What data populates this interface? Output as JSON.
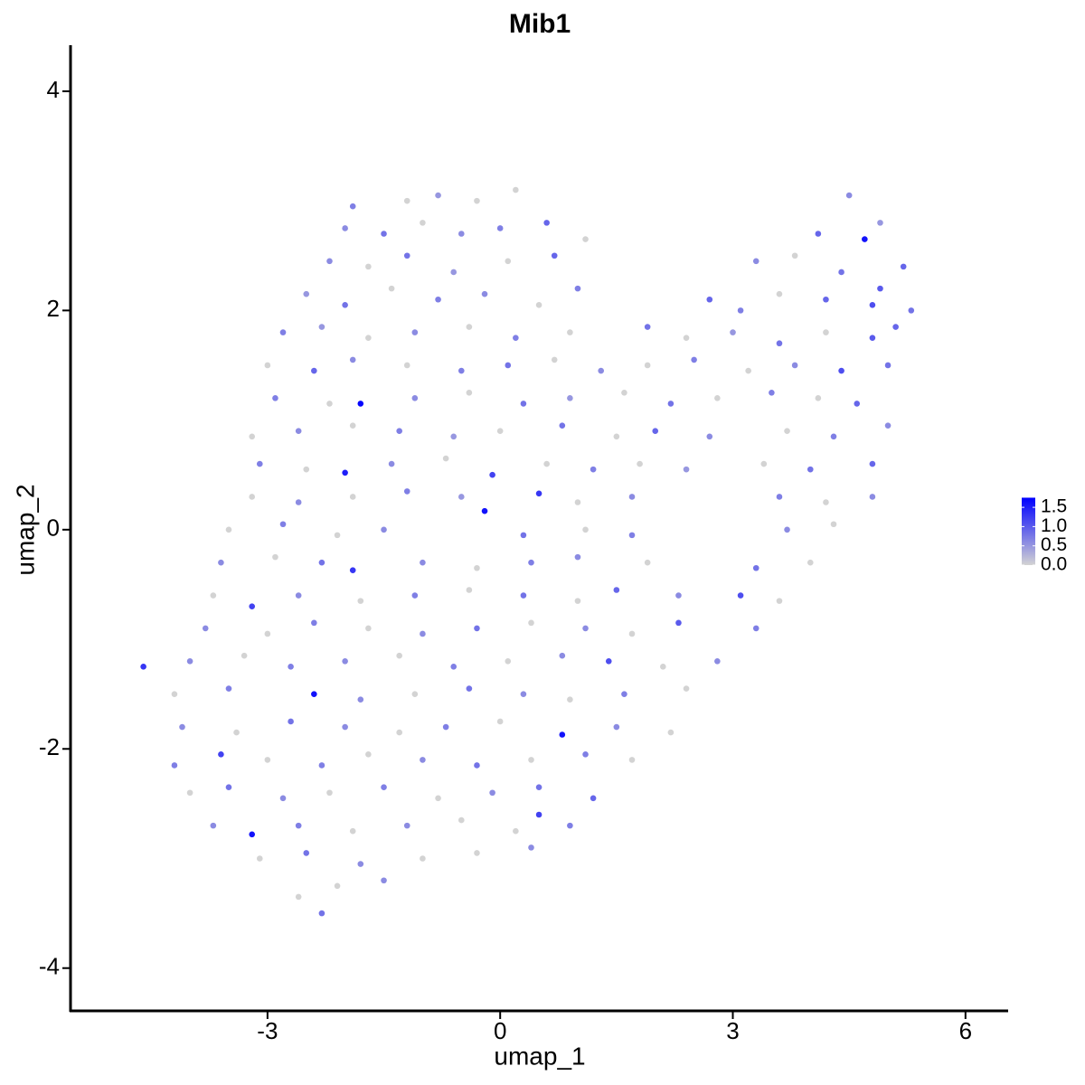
{
  "chart_data": {
    "type": "scatter",
    "title": "Mib1",
    "xlabel": "umap_1",
    "ylabel": "umap_2",
    "xlim": [
      -5.54,
      6.55
    ],
    "ylim": [
      -4.39,
      4.42
    ],
    "xticks": [
      -3,
      0,
      3,
      6
    ],
    "yticks": [
      -4,
      -2,
      0,
      2,
      4
    ],
    "colorscale": {
      "low": "#d3d3d3",
      "high": "#0000ff"
    },
    "colorlim": [
      0,
      1.75
    ],
    "colorticks": [
      {
        "value": 0,
        "label": "0.0"
      },
      {
        "value": 0.5,
        "label": "0.5"
      },
      {
        "value": 1,
        "label": "1.0"
      },
      {
        "value": 1.5,
        "label": "1.5"
      }
    ],
    "x": [
      -1.2,
      -0.8,
      -0.3,
      0.2,
      4.5,
      -1.9,
      -2.0,
      -1.5,
      -1.0,
      -0.5,
      0,
      0.6,
      1.1,
      4.1,
      4.7,
      4.9,
      -2.2,
      -1.7,
      -1.2,
      -0.6,
      0.1,
      0.7,
      3.3,
      3.8,
      4.4,
      5.2,
      4.9,
      -2.5,
      -2.0,
      -1.4,
      -0.8,
      -0.2,
      0.5,
      1.0,
      2.7,
      3.1,
      3.6,
      4.2,
      4.8,
      5.3,
      -2.8,
      -2.3,
      -1.7,
      -1.1,
      -0.4,
      0.2,
      0.9,
      1.9,
      2.4,
      3.0,
      3.6,
      4.2,
      4.8,
      5.1,
      -3.0,
      -2.4,
      -1.9,
      -1.2,
      -0.5,
      0.1,
      0.7,
      1.3,
      1.9,
      2.5,
      3.2,
      3.8,
      4.4,
      5.0,
      -2.9,
      -2.2,
      -1.8,
      -1.1,
      -0.4,
      0.3,
      0.9,
      1.6,
      2.2,
      2.8,
      3.5,
      4.1,
      4.6,
      -3.2,
      -2.6,
      -1.9,
      -1.3,
      -0.6,
      0.0,
      0.8,
      1.5,
      2.0,
      2.7,
      3.7,
      4.3,
      5.0,
      -3.1,
      -2.5,
      -2.0,
      -1.4,
      -0.7,
      -0.1,
      0.6,
      1.2,
      1.8,
      2.4,
      3.4,
      4.0,
      4.8,
      -3.2,
      -2.6,
      -1.9,
      -1.2,
      -0.5,
      0.5,
      1.0,
      1.7,
      3.6,
      4.2,
      4.8,
      -3.5,
      -2.8,
      -2.1,
      -1.5,
      -0.2,
      0.3,
      1.1,
      1.7,
      3.7,
      4.3,
      -3.6,
      -2.9,
      -2.3,
      -1.9,
      -1.0,
      -0.3,
      0.4,
      1.0,
      1.9,
      3.3,
      4.0,
      -3.7,
      -3.2,
      -2.6,
      -1.8,
      -1.1,
      -0.4,
      0.3,
      1.0,
      1.5,
      2.3,
      3.1,
      3.6,
      -3.8,
      -3.0,
      -2.4,
      -1.7,
      -1.0,
      -0.3,
      0.4,
      1.1,
      1.7,
      2.3,
      3.3,
      -4.6,
      -4.0,
      -3.3,
      -2.7,
      -2.0,
      -1.3,
      -0.6,
      0.1,
      0.8,
      1.4,
      2.1,
      2.8,
      -4.2,
      -3.5,
      -2.4,
      -1.8,
      -1.1,
      -0.4,
      0.3,
      0.9,
      1.6,
      2.4,
      -4.1,
      -3.4,
      -2.7,
      -2.0,
      -1.3,
      -0.7,
      0.0,
      0.8,
      1.5,
      2.2,
      -4.2,
      -3.6,
      -3.0,
      -2.3,
      -1.7,
      -1.0,
      -0.3,
      0.4,
      1.1,
      1.7,
      -4.0,
      -3.5,
      -2.8,
      -2.2,
      -1.5,
      -0.8,
      -0.1,
      0.5,
      1.2,
      -3.7,
      -3.2,
      -2.6,
      -1.9,
      -1.2,
      -0.5,
      0.2,
      0.5,
      0.9,
      -3.1,
      -2.5,
      -1.8,
      -1.0,
      -0.3,
      0.4,
      -2.6,
      -2.3,
      -1.5,
      -2.1
    ],
    "y": [
      3.0,
      3.05,
      3.0,
      3.1,
      3.05,
      2.95,
      2.75,
      2.7,
      2.8,
      2.7,
      2.75,
      2.8,
      2.65,
      2.7,
      2.65,
      2.8,
      2.45,
      2.4,
      2.5,
      2.35,
      2.45,
      2.5,
      2.45,
      2.5,
      2.35,
      2.4,
      2.2,
      2.15,
      2.05,
      2.2,
      2.1,
      2.15,
      2.05,
      2.2,
      2.1,
      2.0,
      2.15,
      2.1,
      2.05,
      2.0,
      1.8,
      1.85,
      1.75,
      1.8,
      1.85,
      1.75,
      1.8,
      1.85,
      1.75,
      1.8,
      1.7,
      1.8,
      1.75,
      1.85,
      1.5,
      1.45,
      1.55,
      1.5,
      1.45,
      1.5,
      1.55,
      1.45,
      1.5,
      1.55,
      1.45,
      1.5,
      1.45,
      1.5,
      1.2,
      1.15,
      1.15,
      1.2,
      1.25,
      1.15,
      1.2,
      1.25,
      1.15,
      1.2,
      1.25,
      1.2,
      1.15,
      0.85,
      0.9,
      0.95,
      0.9,
      0.85,
      0.9,
      0.95,
      0.85,
      0.9,
      0.85,
      0.9,
      0.85,
      0.95,
      0.6,
      0.55,
      0.52,
      0.6,
      0.65,
      0.5,
      0.6,
      0.55,
      0.6,
      0.55,
      0.6,
      0.55,
      0.6,
      0.3,
      0.25,
      0.3,
      0.35,
      0.3,
      0.33,
      0.25,
      0.3,
      0.3,
      0.25,
      0.3,
      0.0,
      0.05,
      -0.05,
      0.0,
      0.17,
      -0.05,
      0.0,
      -0.05,
      0.0,
      0.05,
      -0.3,
      -0.25,
      -0.3,
      -0.37,
      -0.3,
      -0.35,
      -0.3,
      -0.25,
      -0.3,
      -0.35,
      -0.3,
      -0.6,
      -0.7,
      -0.6,
      -0.65,
      -0.6,
      -0.55,
      -0.6,
      -0.65,
      -0.55,
      -0.6,
      -0.6,
      -0.65,
      -0.9,
      -0.95,
      -0.85,
      -0.9,
      -0.95,
      -0.9,
      -0.85,
      -0.9,
      -0.95,
      -0.85,
      -0.9,
      -1.25,
      -1.2,
      -1.15,
      -1.25,
      -1.2,
      -1.15,
      -1.25,
      -1.2,
      -1.15,
      -1.2,
      -1.25,
      -1.2,
      -1.5,
      -1.45,
      -1.5,
      -1.55,
      -1.5,
      -1.45,
      -1.5,
      -1.55,
      -1.5,
      -1.45,
      -1.8,
      -1.85,
      -1.75,
      -1.8,
      -1.85,
      -1.8,
      -1.75,
      -1.87,
      -1.8,
      -1.85,
      -2.15,
      -2.05,
      -2.1,
      -2.15,
      -2.05,
      -2.1,
      -2.15,
      -2.1,
      -2.05,
      -2.1,
      -2.4,
      -2.35,
      -2.45,
      -2.4,
      -2.35,
      -2.45,
      -2.4,
      -2.35,
      -2.45,
      -2.7,
      -2.78,
      -2.7,
      -2.75,
      -2.7,
      -2.65,
      -2.75,
      -2.6,
      -2.7,
      -3.0,
      -2.95,
      -3.05,
      -3.0,
      -2.95,
      -2.9,
      -3.35,
      -3.5,
      -3.2,
      -3.25
    ],
    "values": [
      0,
      0.5,
      0,
      0,
      0.6,
      0.7,
      0.6,
      0.8,
      0,
      0.6,
      0.7,
      0.9,
      0,
      0.9,
      1.6,
      0.5,
      0.6,
      0,
      0.8,
      0.5,
      0,
      0.9,
      0.6,
      0,
      0.8,
      0.9,
      1.0,
      0.5,
      0.8,
      0,
      0.7,
      0.6,
      0,
      0.7,
      0.9,
      0.7,
      0,
      0.9,
      1.1,
      0.8,
      0.7,
      0.5,
      0,
      0.6,
      0,
      0.7,
      0,
      0.8,
      0,
      0.5,
      0.8,
      0,
      1.0,
      0.9,
      0,
      0.9,
      0.6,
      0,
      0.7,
      0.8,
      0,
      0.6,
      0,
      0.7,
      0,
      0.6,
      1.1,
      0.8,
      0.7,
      0,
      1.7,
      0.6,
      0,
      0.8,
      0.5,
      0,
      0.8,
      0,
      0.7,
      0,
      0.9,
      0,
      0.6,
      0,
      0.7,
      0.5,
      0,
      0.8,
      0,
      0.9,
      0.6,
      0,
      0.7,
      0.6,
      0.7,
      0,
      1.5,
      0.6,
      0,
      1.2,
      0,
      0.7,
      0,
      0.5,
      0,
      0.8,
      0.9,
      0,
      0.6,
      0,
      0.7,
      0.5,
      1.3,
      0,
      0.6,
      0.7,
      0,
      0.6,
      0,
      0.7,
      0,
      0.6,
      1.6,
      0.8,
      0,
      0.7,
      0.6,
      0,
      0.6,
      0,
      0.8,
      1.3,
      0.6,
      0,
      0.7,
      0.6,
      0,
      0.8,
      0,
      0,
      1.2,
      0.6,
      0,
      0.7,
      0,
      0.8,
      0,
      0.9,
      0.6,
      1.1,
      0,
      0.6,
      0,
      0.7,
      0,
      0.6,
      0.8,
      0,
      0.6,
      0,
      1.0,
      0.7,
      1.3,
      0.6,
      0,
      0.7,
      0.6,
      0,
      0.7,
      0,
      0.6,
      1.1,
      0,
      0.6,
      0,
      0.7,
      1.6,
      0.6,
      0,
      0.8,
      0.6,
      0,
      0.7,
      0,
      0.6,
      0,
      0.8,
      0.6,
      0,
      0.7,
      0,
      1.6,
      0.6,
      0,
      0.7,
      1.2,
      0,
      0.7,
      0,
      0.6,
      0.8,
      0,
      0.7,
      0,
      0,
      0.8,
      0.6,
      0,
      0.7,
      0,
      0.6,
      0.8,
      0.9,
      0.6,
      1.6,
      0.7,
      0,
      0.6,
      0,
      0,
      1.2,
      0.7,
      0,
      0.8,
      0.6,
      0,
      0,
      0.6,
      0,
      0.8,
      0.6,
      0
    ]
  }
}
